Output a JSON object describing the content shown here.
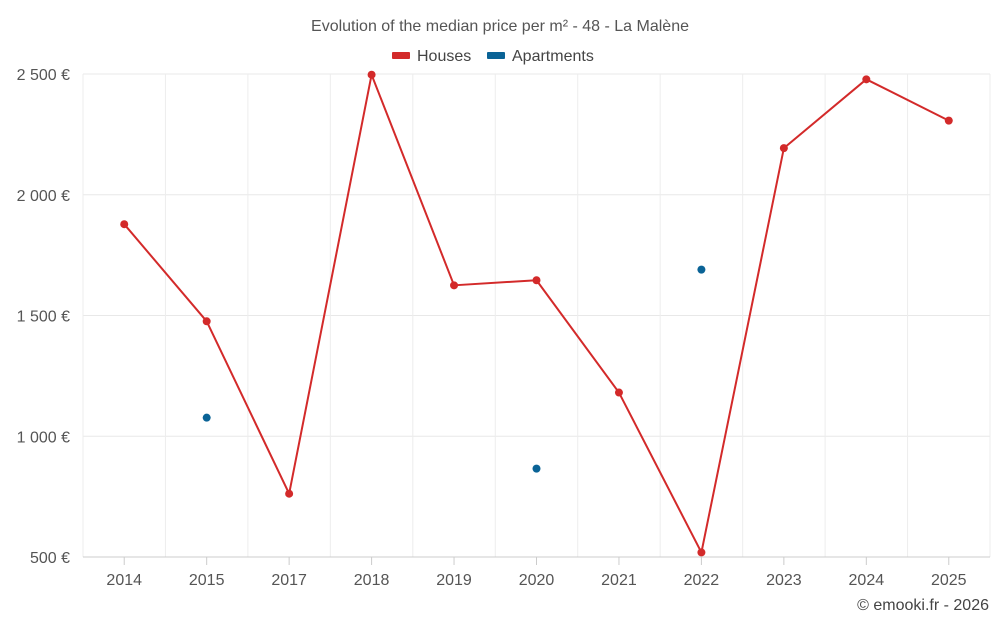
{
  "chart_data": {
    "type": "line",
    "title": "Evolution of the median price per m² - 48 - La Malène",
    "xlabel": "",
    "ylabel": "",
    "categories": [
      "2014",
      "2015",
      "2017",
      "2018",
      "2019",
      "2020",
      "2021",
      "2022",
      "2023",
      "2024",
      "2025"
    ],
    "series": [
      {
        "name": "Houses",
        "color": "#d32a2a",
        "values": [
          1878,
          1476,
          762,
          2497,
          1625,
          1646,
          1181,
          519,
          2193,
          2478,
          2307
        ]
      },
      {
        "name": "Apartments",
        "color": "#0a6396",
        "values": [
          null,
          1077,
          null,
          null,
          null,
          866,
          null,
          1690,
          null,
          null,
          null
        ]
      }
    ],
    "ylim": [
      500,
      2500
    ],
    "yticks": [
      500,
      1000,
      1500,
      2000,
      2500
    ],
    "ytick_labels": [
      "500 €",
      "1 000 €",
      "1 500 €",
      "2 000 €",
      "2 500 €"
    ],
    "grid": true,
    "legend_position": "top-center"
  },
  "credit": "© emooki.fr - 2026"
}
